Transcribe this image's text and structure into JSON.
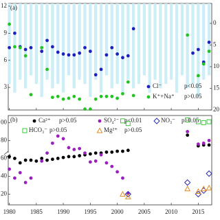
{
  "chart_data": [
    {
      "type": "scatter",
      "panel_label": "(a)",
      "xlim": [
        1979.8,
        2017.5
      ],
      "xticks": [
        1980,
        1985,
        1990,
        1995,
        2000,
        2005,
        2010,
        2015
      ],
      "ylim": [
        0.5,
        12.3
      ],
      "yticks": [
        3,
        6,
        9,
        12
      ],
      "y2lim": [
        -4.6,
        20
      ],
      "y2ticks": [
        0,
        5,
        10,
        15,
        20
      ],
      "y2_inverted": true,
      "series": [
        {
          "type": "bar",
          "axis": "y2",
          "color": "#cdeef7",
          "x": [
            1980,
            1981,
            1982,
            1983,
            1984,
            1985,
            1986,
            1987,
            1988,
            1989,
            1990,
            1991,
            1992,
            1993,
            1994,
            1995,
            1996,
            1997,
            1998,
            1999,
            2000,
            2001,
            2002,
            2003,
            2004,
            2005,
            2006,
            2007,
            2008,
            2009,
            2010,
            2011,
            2012,
            2013,
            2014,
            2015,
            2016,
            2017
          ],
          "values": [
            14,
            16,
            13,
            15,
            12,
            14,
            17,
            13,
            15,
            14,
            16,
            12,
            15,
            13,
            14,
            17,
            13,
            16,
            12,
            15,
            14,
            16,
            13,
            15,
            14,
            12,
            16,
            13,
            15,
            14,
            13,
            16,
            12,
            15,
            14,
            17,
            13,
            12
          ]
        },
        {
          "name": "Cl⁻",
          "note": "p<0.05",
          "marker": "circle",
          "color": "#1f1fbf",
          "x": [
            1980,
            1981,
            1982,
            1983,
            1984,
            1986,
            1987,
            1988,
            1989,
            1990,
            1991,
            1992,
            1993,
            1994,
            1995,
            1996,
            1997,
            1998,
            1999,
            2000,
            2001,
            2002,
            2003,
            2014,
            2015,
            2016,
            2017
          ],
          "values": [
            7.4,
            9.0,
            7.5,
            7.2,
            7.4,
            7.0,
            8.2,
            7.5,
            6.9,
            6.7,
            6.6,
            6.6,
            6.8,
            7.4,
            7.0,
            4.4,
            5.0,
            6.6,
            7.4,
            6.7,
            6.3,
            6.5,
            9.5,
            6.8,
            7.2,
            5.8,
            8.0
          ]
        },
        {
          "name": "K⁺+Na⁺",
          "note": "p>0.05",
          "marker": "circle",
          "color": "#22c422",
          "x": [
            1980,
            1981,
            1982,
            1983,
            1984,
            1986,
            1987,
            1988,
            1989,
            1990,
            1991,
            1992,
            1993,
            1994,
            1995,
            1996,
            1997,
            1998,
            1999,
            2000,
            2001,
            2002,
            2003,
            2013,
            2015,
            2016,
            2017
          ],
          "values": [
            10.0,
            7.5,
            7.4,
            6.5,
            2.2,
            7.4,
            5.0,
            1.9,
            2.0,
            1.7,
            1.8,
            2.0,
            1.7,
            0.6,
            0.6,
            1.7,
            2.0,
            2.0,
            2.0,
            1.8,
            2.3,
            3.6,
            2.1,
            8.8,
            4.3,
            5.6,
            7.0
          ]
        }
      ]
    },
    {
      "type": "scatter",
      "panel_label": "(b)",
      "xlim": [
        1979.8,
        2017.5
      ],
      "xticks": [
        1980,
        1985,
        1990,
        1995,
        2000,
        2005,
        2010,
        2015
      ],
      "ylim": [
        8,
        108
      ],
      "yticks": [
        20,
        40,
        60,
        80,
        {
          "value": 100,
          "label": "00"
        }
      ],
      "series": [
        {
          "name": "Ca²⁺",
          "note": "p>0.05",
          "marker": "circle",
          "color": "#000000",
          "x": [
            1980,
            1981,
            1982,
            1983,
            1984,
            1985,
            1986,
            1987,
            1988,
            1989,
            1990,
            1991,
            1992,
            1993,
            1994,
            1995,
            1996,
            1997,
            1998,
            1999,
            2000,
            2001,
            2002,
            2013,
            2015,
            2016,
            2017
          ],
          "values": [
            62,
            60,
            55,
            58,
            58,
            57,
            60,
            58,
            59,
            60,
            61,
            62,
            62,
            63,
            64,
            65,
            66,
            66,
            67,
            67,
            68,
            68,
            69,
            86,
            74,
            75,
            75
          ]
        },
        {
          "name": "SO₄²⁻",
          "note": "p<0.01",
          "marker": "circle",
          "color": "#9b1fbf",
          "x": [
            1980,
            1981,
            1982,
            1983,
            1984,
            1986,
            1987,
            1988,
            1989,
            1990,
            1991,
            1992,
            1993,
            1994,
            1995,
            1996,
            1997,
            1998,
            1999,
            2000,
            2001,
            2002,
            2013,
            2015,
            2016,
            2017
          ],
          "values": [
            48,
            38,
            44,
            33,
            38,
            57,
            66,
            77,
            85,
            82,
            72,
            70,
            71,
            66,
            56,
            57,
            64,
            55,
            51,
            45,
            38,
            21,
            90,
            76,
            77,
            80
          ]
        },
        {
          "name": "NO₃⁻",
          "note": "p>0.05",
          "marker": "diamond",
          "color": "#2b2bb0",
          "x": [
            2002,
            2013,
            2015,
            2016,
            2017
          ],
          "values": [
            20,
            33,
            20,
            24,
            43
          ]
        },
        {
          "name": "HCO₃⁻",
          "note": "p>0.05",
          "marker": "square",
          "color": "#33cc33",
          "x": [
            2001,
            2002,
            2013,
            2015,
            2016,
            2017
          ],
          "values": [
            102,
            99,
            103,
            101,
            100,
            101
          ]
        },
        {
          "name": "Mg²⁺",
          "note": "p>0.05",
          "marker": "triangle",
          "color": "#e08a1e",
          "x": [
            2001,
            2002,
            2013,
            2015,
            2016,
            2017
          ],
          "values": [
            20,
            17,
            26,
            23,
            26,
            27
          ]
        }
      ]
    }
  ]
}
